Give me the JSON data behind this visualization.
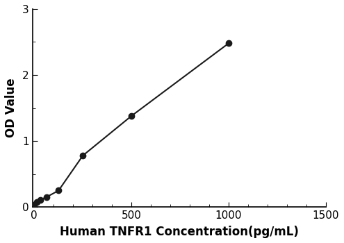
{
  "x": [
    0,
    15,
    31,
    62,
    125,
    250,
    500,
    1000
  ],
  "y": [
    0.03,
    0.08,
    0.11,
    0.15,
    0.25,
    0.78,
    1.38,
    2.48
  ],
  "xlabel": "Human TNFR1 Concentration(pg/mL)",
  "ylabel": "OD Value",
  "xlim": [
    -10,
    1500
  ],
  "ylim": [
    0,
    3
  ],
  "xticks": [
    0,
    500,
    1000,
    1500
  ],
  "yticks": [
    0,
    1,
    2,
    3
  ],
  "x_minor_step": 100,
  "y_minor_step": 0.5,
  "line_color": "#1a1a1a",
  "marker_color": "#1a1a1a",
  "marker_size": 6,
  "line_width": 1.5,
  "background_color": "#ffffff",
  "xlabel_fontsize": 12,
  "ylabel_fontsize": 12,
  "tick_fontsize": 11,
  "xlabel_fontweight": "bold",
  "ylabel_fontweight": "bold"
}
